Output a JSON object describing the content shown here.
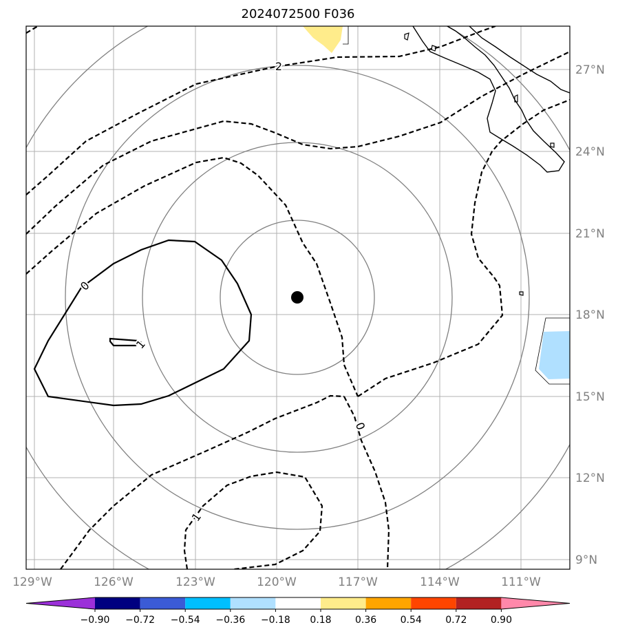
{
  "title": "2024072500 F036",
  "map": {
    "lat_labels": [
      "27°N",
      "24°N",
      "21°N",
      "18°N",
      "15°N",
      "12°N",
      "9°N"
    ],
    "lon_labels": [
      "129°W",
      "126°W",
      "123°W",
      "120°W",
      "117°W",
      "114°W",
      "111°W"
    ],
    "storm_center": {
      "lat": 18.6,
      "lon": -119.3
    },
    "contour_labels": {
      "c2": "2",
      "c0_solid": "0",
      "c1_small": "1",
      "c0_dashed": "0",
      "c1_dashed": "1"
    }
  },
  "colorbar": {
    "ticks": [
      "−0.90",
      "−0.72",
      "−0.54",
      "−0.36",
      "−0.18",
      "0.18",
      "0.36",
      "0.54",
      "0.72",
      "0.90"
    ],
    "colors": [
      "#9b30d9",
      "#000080",
      "#3b5bd6",
      "#00bfff",
      "#b0e0ff",
      "#ffffff",
      "#ffec8b",
      "#ffa500",
      "#ff4500",
      "#b22222",
      "#ff88aa"
    ]
  }
}
